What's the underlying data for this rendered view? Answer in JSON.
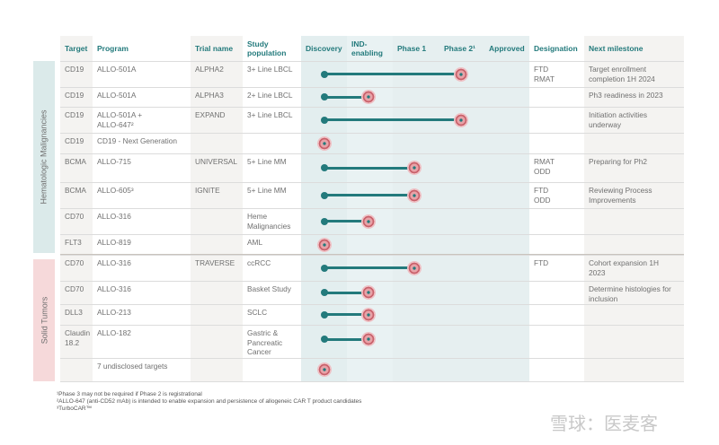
{
  "headers": [
    "Target",
    "Program",
    "Trial name",
    "Study\npopulation",
    "Discovery",
    "IND-\nenabling",
    "Phase 1",
    "Phase 2¹",
    "Approved",
    "Designation",
    "Next milestone"
  ],
  "stages": [
    "Discovery",
    "IND-enabling",
    "Phase 1",
    "Phase 2",
    "Approved"
  ],
  "groups": [
    {
      "label": "Hematologic Malignancies",
      "color": "#dbeaea"
    },
    {
      "label": "Solid Tumors",
      "color": "#f6d9da"
    }
  ],
  "rows": [
    {
      "target": "CD19",
      "program": "ALLO-501A",
      "trial": "ALPHA2",
      "population": "3+ Line LBCL",
      "stage": 3,
      "designation": "FTD\nRMAT",
      "milestone": "Target enrollment\ncompletion 1H 2024"
    },
    {
      "target": "CD19",
      "program": "ALLO-501A",
      "trial": "ALPHA3",
      "population": "2+ Line LBCL",
      "stage": 1,
      "designation": "",
      "milestone": "Ph3 readiness in 2023"
    },
    {
      "target": "CD19",
      "program": "ALLO-501A +\nALLO-647²",
      "trial": "EXPAND",
      "population": "3+ Line LBCL",
      "stage": 3,
      "designation": "",
      "milestone": "Initiation activities\nunderway"
    },
    {
      "target": "CD19",
      "program": "CD19 - Next Generation",
      "trial": "",
      "population": "",
      "stage": 0,
      "designation": "",
      "milestone": ""
    },
    {
      "target": "BCMA",
      "program": "ALLO-715",
      "trial": "UNIVERSAL",
      "population": "5+ Line MM",
      "stage": 2,
      "designation": "RMAT\nODD",
      "milestone": "Preparing for Ph2"
    },
    {
      "target": "BCMA",
      "program": "ALLO-605³",
      "trial": "IGNITE",
      "population": "5+ Line MM",
      "stage": 2,
      "designation": "FTD\nODD",
      "milestone": "Reviewing Process\nImprovements"
    },
    {
      "target": "CD70",
      "program": "ALLO-316",
      "trial": "",
      "population": "Heme\nMalignancies",
      "stage": 1,
      "designation": "",
      "milestone": ""
    },
    {
      "target": "FLT3",
      "program": "ALLO-819",
      "trial": "",
      "population": "AML",
      "stage": 0,
      "designation": "",
      "milestone": ""
    },
    {
      "target": "CD70",
      "program": "ALLO-316",
      "trial": "TRAVERSE",
      "population": "ccRCC",
      "stage": 2,
      "designation": "FTD",
      "milestone": "Cohort expansion 1H\n2023"
    },
    {
      "target": "CD70",
      "program": "ALLO-316",
      "trial": "",
      "population": "Basket Study",
      "stage": 1,
      "designation": "",
      "milestone": "Determine histologies for\ninclusion"
    },
    {
      "target": "DLL3",
      "program": "ALLO-213",
      "trial": "",
      "population": "SCLC",
      "stage": 1,
      "designation": "",
      "milestone": ""
    },
    {
      "target": "Claudin\n18.2",
      "program": "ALLO-182",
      "trial": "",
      "population": "Gastric &\nPancreatic\nCancer",
      "stage": 1,
      "designation": "",
      "milestone": ""
    },
    {
      "target": "",
      "program": "7 undisclosed targets",
      "trial": "",
      "population": "",
      "stage": 0,
      "designation": "",
      "milestone": ""
    }
  ],
  "footnotes": [
    "¹Phase 3 may not be required if Phase 2 is registrational",
    "²ALLO-647 (anti-CD52 mAb) is intended to enable expansion and persistence of allogeneic CAR T product candidates",
    "³TurboCAR™"
  ],
  "watermark": "雪球：医麦客",
  "colors": {
    "accent": "#237a7c"
  }
}
